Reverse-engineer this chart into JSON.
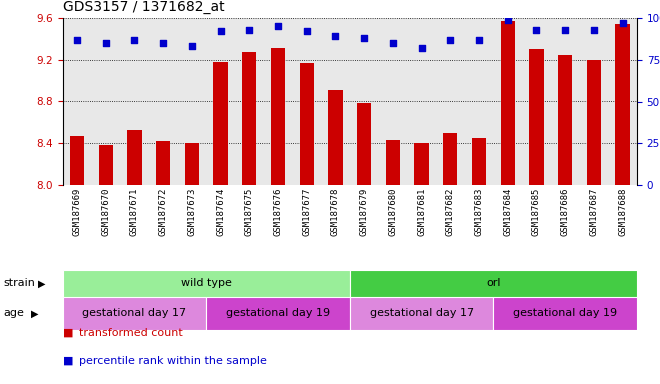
{
  "title": "GDS3157 / 1371682_at",
  "samples": [
    "GSM187669",
    "GSM187670",
    "GSM187671",
    "GSM187672",
    "GSM187673",
    "GSM187674",
    "GSM187675",
    "GSM187676",
    "GSM187677",
    "GSM187678",
    "GSM187679",
    "GSM187680",
    "GSM187681",
    "GSM187682",
    "GSM187683",
    "GSM187684",
    "GSM187685",
    "GSM187686",
    "GSM187687",
    "GSM187688"
  ],
  "bar_values": [
    8.47,
    8.38,
    8.53,
    8.42,
    8.4,
    9.18,
    9.27,
    9.31,
    9.17,
    8.91,
    8.79,
    8.43,
    8.4,
    8.5,
    8.45,
    9.57,
    9.3,
    9.25,
    9.2,
    9.54
  ],
  "percentile_values": [
    87,
    85,
    87,
    85,
    83,
    92,
    93,
    95,
    92,
    89,
    88,
    85,
    82,
    87,
    87,
    99,
    93,
    93,
    93,
    97
  ],
  "ylim_left": [
    8.0,
    9.6
  ],
  "ylim_right": [
    0,
    100
  ],
  "yticks_left": [
    8.0,
    8.4,
    8.8,
    9.2,
    9.6
  ],
  "yticks_right": [
    0,
    25,
    50,
    75,
    100
  ],
  "bar_color": "#cc0000",
  "dot_color": "#0000cc",
  "background_color": "#ffffff",
  "plot_bg_color": "#e8e8e8",
  "strain_groups": [
    {
      "text": "wild type",
      "start": 0,
      "end": 9,
      "color": "#99ee99"
    },
    {
      "text": "orl",
      "start": 10,
      "end": 19,
      "color": "#44cc44"
    }
  ],
  "age_groups": [
    {
      "text": "gestational day 17",
      "start": 0,
      "end": 4,
      "color": "#dd88dd"
    },
    {
      "text": "gestational day 19",
      "start": 5,
      "end": 9,
      "color": "#cc44cc"
    },
    {
      "text": "gestational day 17",
      "start": 10,
      "end": 14,
      "color": "#dd88dd"
    },
    {
      "text": "gestational day 19",
      "start": 15,
      "end": 19,
      "color": "#cc44cc"
    }
  ],
  "legend_items": [
    {
      "label": "transformed count",
      "color": "#cc0000"
    },
    {
      "label": "percentile rank within the sample",
      "color": "#0000cc"
    }
  ],
  "title_fontsize": 10,
  "tick_fontsize": 7.5,
  "label_fontsize": 8,
  "annotation_fontsize": 8
}
